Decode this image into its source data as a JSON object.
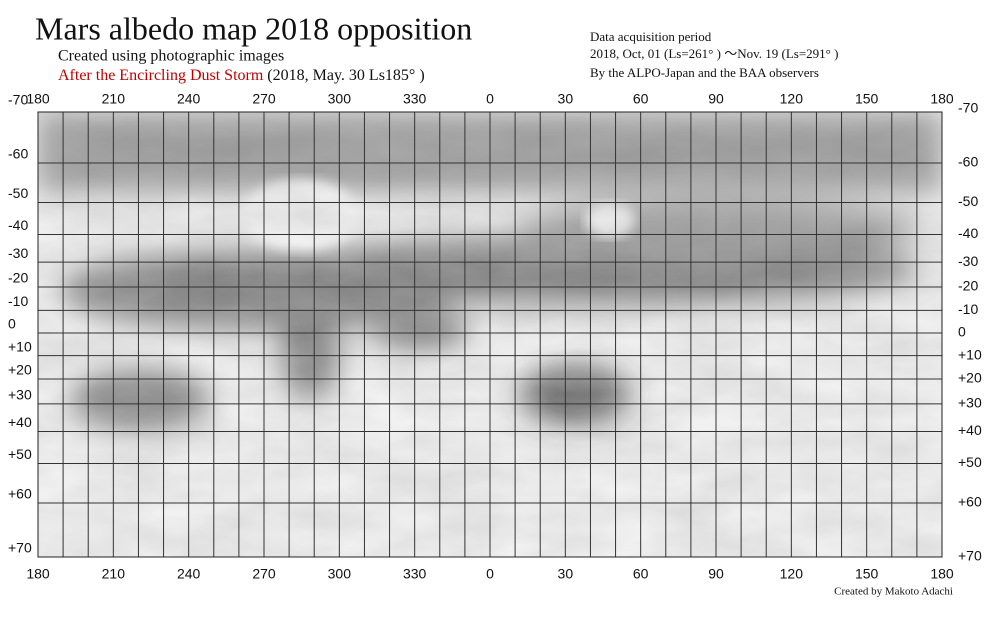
{
  "title": "Mars albedo map 2018 opposition",
  "subtitle": "Created using photographic images",
  "note": {
    "highlight": "After the Encircling Dust Storm",
    "detail": "(2018, May. 30  Ls185°  )"
  },
  "acquisition": {
    "heading": "Data acquisition period",
    "period": "2018, Oct, 01 (Ls=261° ) ～Nov. 19 (Ls=291° )",
    "observers": "By the ALPO-Japan and the BAA observers"
  },
  "credit": "Created by Makoto Adachi",
  "map": {
    "longitude_ticks": [
      180,
      210,
      240,
      270,
      300,
      330,
      0,
      30,
      60,
      90,
      120,
      150,
      180
    ],
    "latitude_ticks": [
      -70,
      -60,
      -50,
      -40,
      -30,
      -20,
      -10,
      0,
      {
        "value": 10,
        "label": "+10"
      },
      {
        "value": 20,
        "label": "+20"
      },
      {
        "value": 30,
        "label": "+30"
      },
      {
        "value": 40,
        "label": "+40"
      },
      {
        "value": 50,
        "label": "+50"
      },
      {
        "value": 60,
        "label": "+60"
      },
      {
        "value": 70,
        "label": "+70"
      }
    ]
  }
}
